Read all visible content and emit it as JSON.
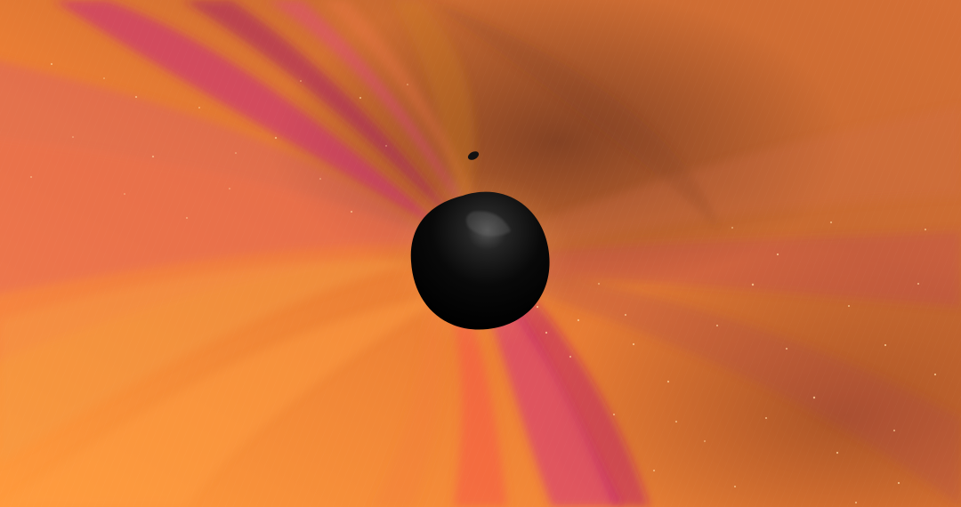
{
  "scene": {
    "subject": "black-hole-merger-visualization",
    "colors": {
      "background_light": "#f28f3b",
      "background_mid": "#d8752f",
      "background_dark": "#8c4a25",
      "magenta": "#d2357d",
      "deep_magenta": "#b41d6a",
      "coral": "#ef5f4b",
      "black_hole": "#070707"
    }
  }
}
